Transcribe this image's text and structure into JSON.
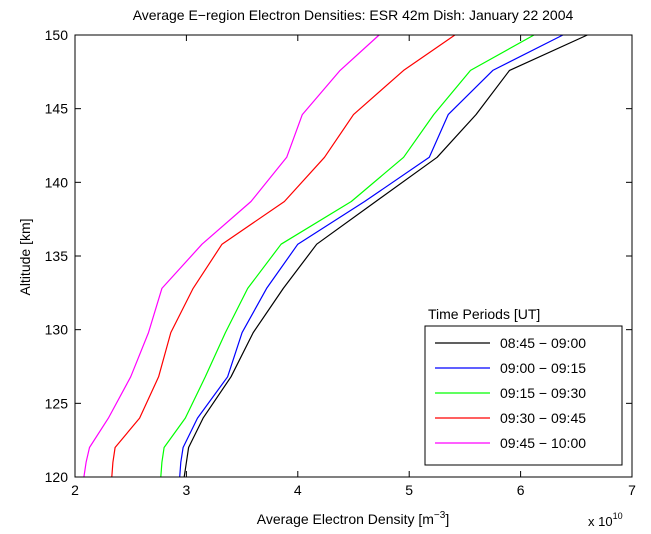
{
  "chart_data": {
    "type": "line",
    "title": "Average E−region Electron Densities: ESR 42m Dish: January 22 2004",
    "xlabel_main": "Average Electron Density [m",
    "xlabel_sup": "−3",
    "xlabel_end": "]",
    "ylabel": "Altitude [km]",
    "xlim": [
      2,
      7
    ],
    "ylim": [
      120,
      150
    ],
    "xticks": [
      "2",
      "3",
      "4",
      "5",
      "6",
      "7"
    ],
    "yticks": [
      "120",
      "125",
      "130",
      "135",
      "140",
      "145",
      "150"
    ],
    "x_multiplier_base": "x 10",
    "x_multiplier_exp": "10",
    "grid": false,
    "legend_title": "Time Periods [UT]",
    "legend_position": "bottom-right",
    "altitudes": [
      120,
      121,
      122,
      124,
      126.8,
      129.8,
      132.8,
      135.8,
      138.7,
      141.7,
      144.6,
      147.6,
      150
    ],
    "series": [
      {
        "name": "08:45 − 09:00",
        "color": "#000000",
        "values": [
          2.98,
          3.0,
          3.02,
          3.15,
          3.4,
          3.6,
          3.87,
          4.17,
          4.7,
          5.25,
          5.6,
          5.9,
          6.6
        ]
      },
      {
        "name": "09:00 − 09:15",
        "color": "#0000ff",
        "values": [
          2.94,
          2.95,
          2.97,
          3.1,
          3.37,
          3.5,
          3.72,
          4.0,
          4.6,
          5.18,
          5.35,
          5.75,
          6.38
        ]
      },
      {
        "name": "09:15 − 09:30",
        "color": "#00ff00",
        "values": [
          2.77,
          2.78,
          2.8,
          2.99,
          3.17,
          3.35,
          3.55,
          3.85,
          4.48,
          4.95,
          5.22,
          5.55,
          6.12
        ]
      },
      {
        "name": "09:30 − 09:45",
        "color": "#ff0000",
        "values": [
          2.33,
          2.34,
          2.36,
          2.58,
          2.75,
          2.86,
          3.06,
          3.32,
          3.88,
          4.24,
          4.5,
          4.95,
          5.41
        ]
      },
      {
        "name": "09:45 − 10:00",
        "color": "#ff00ff",
        "values": [
          2.08,
          2.1,
          2.13,
          2.3,
          2.5,
          2.66,
          2.78,
          3.14,
          3.58,
          3.9,
          4.04,
          4.38,
          4.73
        ]
      }
    ]
  }
}
